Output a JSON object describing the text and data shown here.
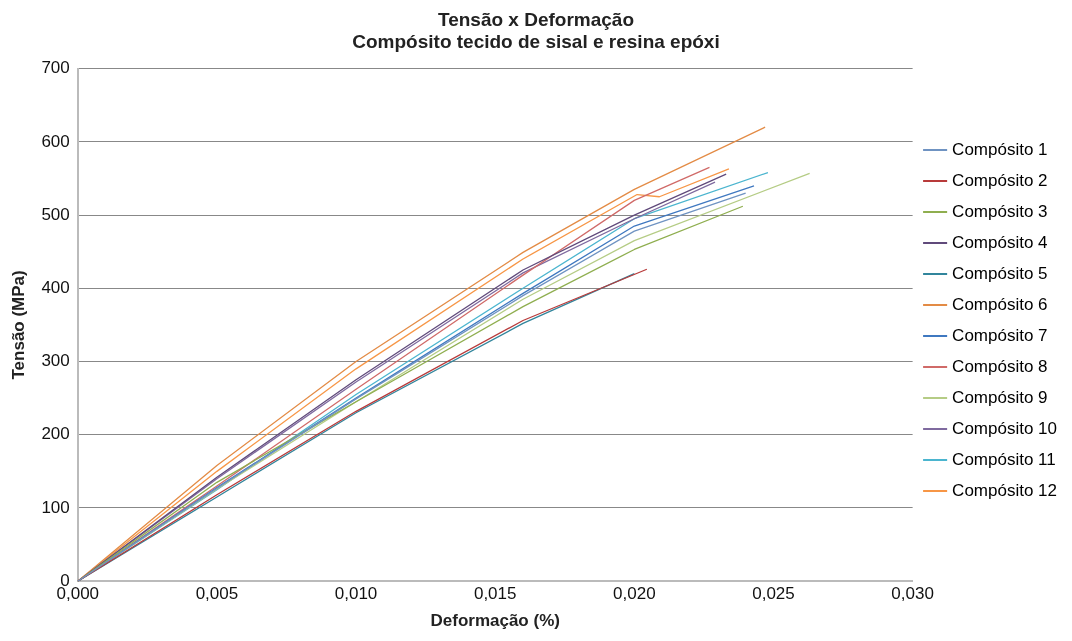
{
  "chart_data": {
    "type": "line",
    "title": "Tensão x Deformação",
    "subtitle": "Compósito tecido de sisal e resina epóxi",
    "xlabel": "Deformação (%)",
    "ylabel": "Tensão (MPa)",
    "xlim": [
      0,
      0.03
    ],
    "xticks": [
      {
        "value": 0,
        "label": "0,000"
      },
      {
        "value": 0.005,
        "label": "0,005"
      },
      {
        "value": 0.01,
        "label": "0,010"
      },
      {
        "value": 0.015,
        "label": "0,015"
      },
      {
        "value": 0.02,
        "label": "0,020"
      },
      {
        "value": 0.025,
        "label": "0,025"
      },
      {
        "value": 0.03,
        "label": "0,030"
      }
    ],
    "ylim": [
      0,
      700
    ],
    "yticks": [
      0,
      100,
      200,
      300,
      400,
      500,
      600,
      700
    ],
    "grid": "y",
    "legend": "right",
    "marker": "none",
    "line_style": "solid",
    "series": [
      {
        "name": "Compósito 1",
        "color": "#6f93c2",
        "x": [
          0,
          0.005,
          0.01,
          0.016,
          0.02,
          0.024
        ],
        "values": [
          0,
          127,
          249,
          390,
          478,
          530
        ]
      },
      {
        "name": "Compósito 2",
        "color": "#b83a3a",
        "x": [
          0,
          0.005,
          0.01,
          0.016,
          0.02045
        ],
        "values": [
          0,
          118,
          232,
          356,
          426
        ]
      },
      {
        "name": "Compósito 3",
        "color": "#8fae4f",
        "x": [
          0,
          0.005,
          0.01,
          0.016,
          0.02,
          0.0239
        ],
        "values": [
          0,
          135,
          245,
          375,
          453,
          512
        ]
      },
      {
        "name": "Compósito 4",
        "color": "#604a7b",
        "x": [
          0,
          0.005,
          0.01,
          0.016,
          0.02,
          0.0233
        ],
        "values": [
          0,
          142,
          275,
          425,
          500,
          556
        ]
      },
      {
        "name": "Compósito 5",
        "color": "#31859c",
        "x": [
          0,
          0.005,
          0.01,
          0.016,
          0.02
        ],
        "values": [
          0,
          115,
          230,
          352,
          420
        ]
      },
      {
        "name": "Compósito 6",
        "color": "#e38b45",
        "x": [
          0,
          0.005,
          0.01,
          0.016,
          0.02,
          0.0247
        ],
        "values": [
          0,
          158,
          300,
          449,
          535,
          620
        ]
      },
      {
        "name": "Compósito 7",
        "color": "#3f78c0",
        "x": [
          0,
          0.005,
          0.01,
          0.016,
          0.02,
          0.0243
        ],
        "values": [
          0,
          128,
          250,
          393,
          485,
          540
        ]
      },
      {
        "name": "Compósito 8",
        "color": "#d06a68",
        "x": [
          0,
          0.005,
          0.01,
          0.016,
          0.02,
          0.0227
        ],
        "values": [
          0,
          130,
          262,
          418,
          520,
          565
        ]
      },
      {
        "name": "Compósito 9",
        "color": "#b5cc85",
        "x": [
          0,
          0.005,
          0.01,
          0.016,
          0.02,
          0.0263
        ],
        "values": [
          0,
          126,
          245,
          385,
          465,
          557
        ]
      },
      {
        "name": "Compósito 10",
        "color": "#7f6a9f",
        "x": [
          0,
          0.005,
          0.01,
          0.016,
          0.02,
          0.0229
        ],
        "values": [
          0,
          140,
          272,
          421,
          495,
          545
        ]
      },
      {
        "name": "Compósito 11",
        "color": "#4bb5cf",
        "x": [
          0,
          0.005,
          0.01,
          0.016,
          0.02,
          0.0248
        ],
        "values": [
          0,
          125,
          255,
          400,
          495,
          558
        ]
      },
      {
        "name": "Compósito 12",
        "color": "#f79646",
        "x": [
          0,
          0.005,
          0.01,
          0.016,
          0.0201,
          0.0209,
          0.0234
        ],
        "values": [
          0,
          150,
          290,
          440,
          528,
          525,
          563
        ]
      }
    ]
  }
}
